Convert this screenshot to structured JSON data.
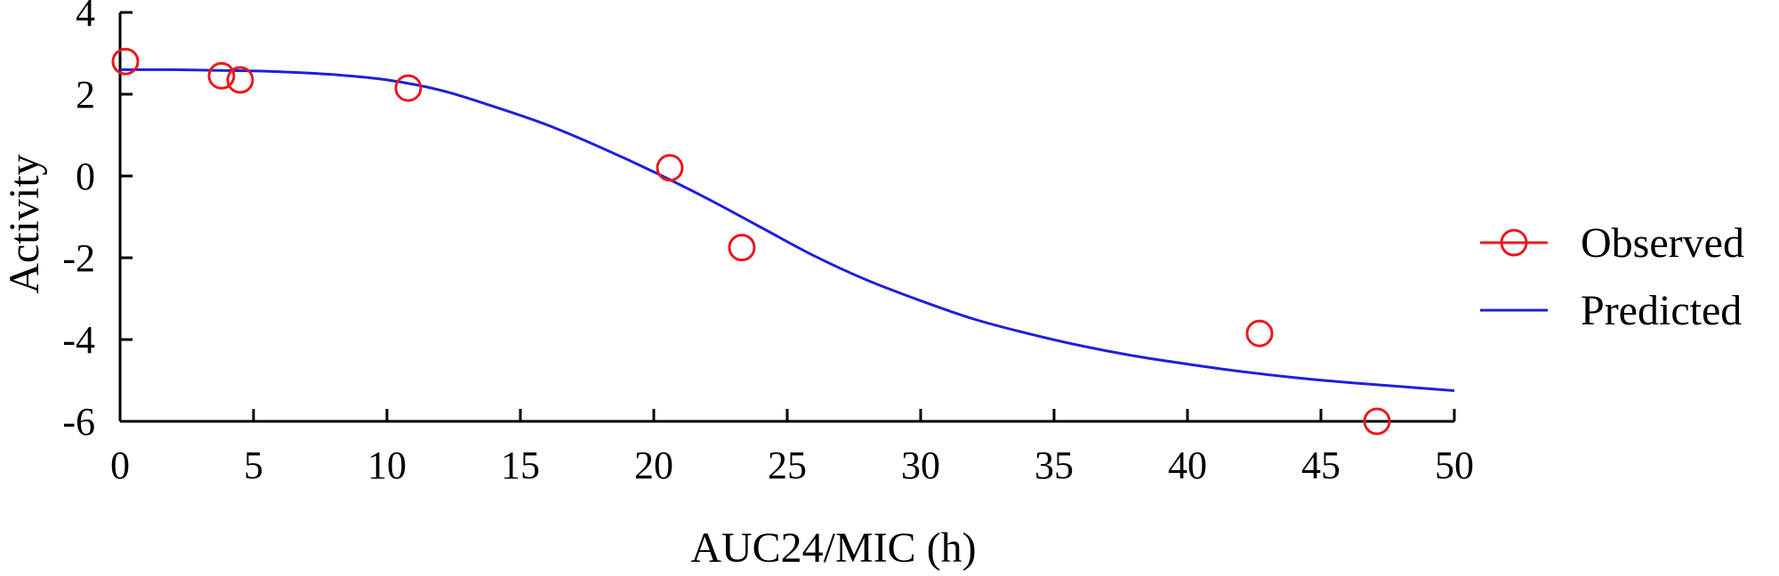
{
  "chart_data": {
    "type": "scatter",
    "title": "",
    "xlabel": "AUC24/MIC (h)",
    "ylabel": "Activity",
    "xlim": [
      0,
      50
    ],
    "ylim": [
      -6,
      4
    ],
    "xticks": [
      "0",
      "5",
      "10",
      "15",
      "20",
      "25",
      "30",
      "35",
      "40",
      "45",
      "50"
    ],
    "yticks": [
      "-6",
      "-4",
      "-2",
      "0",
      "2",
      "4"
    ],
    "grid": false,
    "legend_position": "right",
    "series": [
      {
        "name": "Observed",
        "kind": "markers",
        "marker": "open-circle",
        "color": "#e8191c",
        "x": [
          0.2,
          3.8,
          4.5,
          10.8,
          20.6,
          23.3,
          42.7,
          47.1
        ],
        "y": [
          2.8,
          2.45,
          2.35,
          2.15,
          0.2,
          -1.75,
          -3.85,
          -6.0
        ]
      },
      {
        "name": "Predicted",
        "kind": "line",
        "color": "#1f1fdc",
        "x": [
          0,
          2,
          4,
          6,
          8,
          10,
          12,
          14,
          16,
          18,
          20,
          22,
          24,
          26,
          28,
          30,
          32,
          34,
          36,
          38,
          40,
          42,
          44,
          46,
          48,
          50
        ],
        "y": [
          2.6,
          2.6,
          2.58,
          2.55,
          2.48,
          2.35,
          2.1,
          1.7,
          1.25,
          0.7,
          0.1,
          -0.55,
          -1.25,
          -1.95,
          -2.55,
          -3.05,
          -3.5,
          -3.85,
          -4.15,
          -4.4,
          -4.6,
          -4.78,
          -4.93,
          -5.05,
          -5.15,
          -5.25
        ]
      }
    ]
  }
}
